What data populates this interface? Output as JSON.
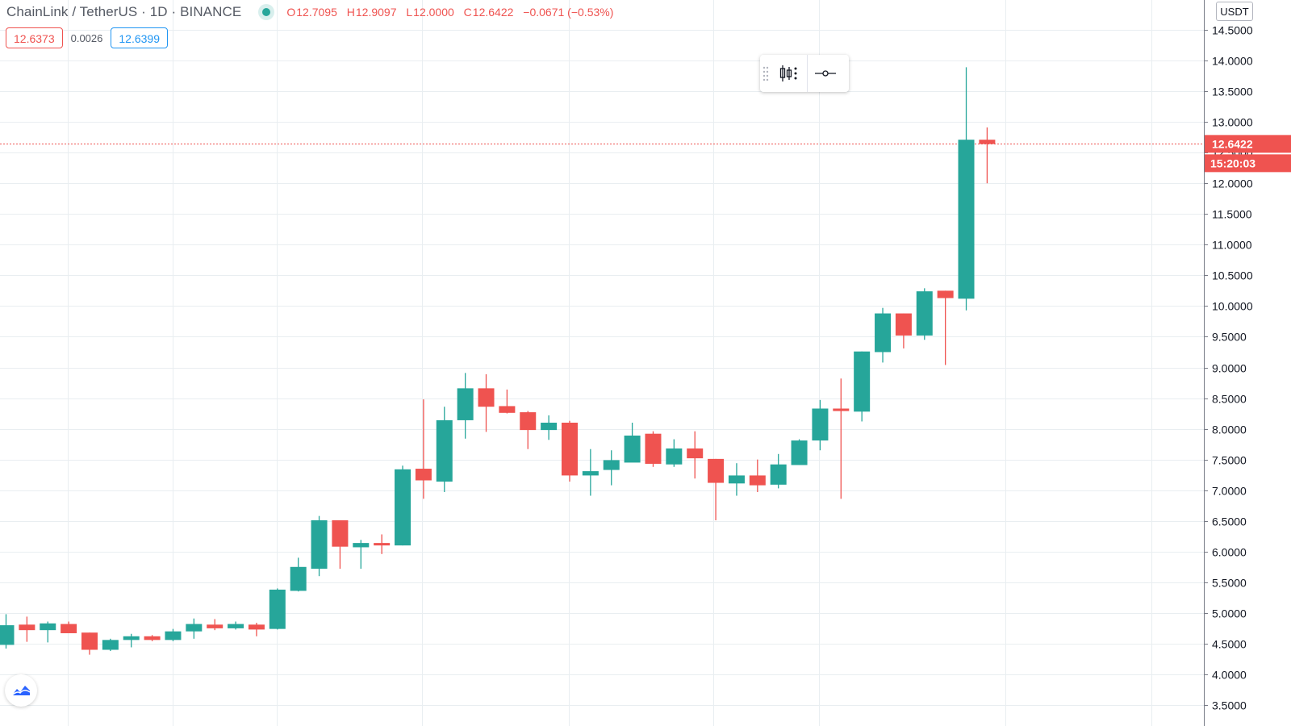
{
  "header": {
    "symbol": "ChainLink / TetherUS · 1D · BINANCE",
    "status_color": "#26a69a",
    "ohlc": {
      "o_label": "O",
      "o_value": "12.7095",
      "h_label": "H",
      "h_value": "12.9097",
      "l_label": "L",
      "l_value": "12.0000",
      "c_label": "C",
      "c_value": "12.6422",
      "change": "−0.0671 (−0.53%)"
    }
  },
  "quote": {
    "sell": "12.6373",
    "spread": "0.0026",
    "buy": "12.6399"
  },
  "toolbar": {
    "grip_icon": "drag-grip-icon",
    "chart_type_icon": "candles-settings-icon",
    "line_icon": "line-tool-icon"
  },
  "price_axis": {
    "unit": "USDT",
    "last_price_label": "12.6422",
    "countdown_label": "15:20:03"
  },
  "logo": {
    "icon": "tradingview-logo-icon"
  },
  "colors": {
    "up": "#26a69a",
    "down": "#ef5350",
    "grid": "#e9eef1",
    "axis_text": "#131722"
  },
  "chart_data": {
    "type": "candlestick",
    "title": "ChainLink / TetherUS · 1D · BINANCE",
    "ylim": [
      3.5,
      14.5
    ],
    "y_ticks": [
      "3.5000",
      "4.0000",
      "4.5000",
      "5.0000",
      "5.5000",
      "6.0000",
      "6.5000",
      "7.0000",
      "7.5000",
      "8.0000",
      "8.5000",
      "9.0000",
      "9.5000",
      "10.0000",
      "10.5000",
      "11.0000",
      "11.5000",
      "12.0000",
      "12.5000",
      "13.0000",
      "13.5000",
      "14.0000",
      "14.5000"
    ],
    "last_price": 12.6422,
    "grid": true,
    "candles": [
      {
        "o": 4.48,
        "h": 4.98,
        "l": 4.42,
        "c": 4.8
      },
      {
        "o": 4.81,
        "h": 4.94,
        "l": 4.53,
        "c": 4.72
      },
      {
        "o": 4.72,
        "h": 4.86,
        "l": 4.52,
        "c": 4.83
      },
      {
        "o": 4.82,
        "h": 4.86,
        "l": 4.68,
        "c": 4.67
      },
      {
        "o": 4.68,
        "h": 4.68,
        "l": 4.32,
        "c": 4.4
      },
      {
        "o": 4.4,
        "h": 4.58,
        "l": 4.38,
        "c": 4.56
      },
      {
        "o": 4.56,
        "h": 4.66,
        "l": 4.44,
        "c": 4.62
      },
      {
        "o": 4.62,
        "h": 4.64,
        "l": 4.54,
        "c": 4.56
      },
      {
        "o": 4.56,
        "h": 4.74,
        "l": 4.54,
        "c": 4.7
      },
      {
        "o": 4.7,
        "h": 4.91,
        "l": 4.58,
        "c": 4.82
      },
      {
        "o": 4.81,
        "h": 4.9,
        "l": 4.72,
        "c": 4.75
      },
      {
        "o": 4.75,
        "h": 4.86,
        "l": 4.73,
        "c": 4.82
      },
      {
        "o": 4.81,
        "h": 4.84,
        "l": 4.62,
        "c": 4.73
      },
      {
        "o": 4.74,
        "h": 5.4,
        "l": 4.73,
        "c": 5.38
      },
      {
        "o": 5.36,
        "h": 5.9,
        "l": 5.35,
        "c": 5.75
      },
      {
        "o": 5.72,
        "h": 6.58,
        "l": 5.6,
        "c": 6.51
      },
      {
        "o": 6.51,
        "h": 6.51,
        "l": 5.72,
        "c": 6.08
      },
      {
        "o": 6.07,
        "h": 6.19,
        "l": 5.72,
        "c": 6.14
      },
      {
        "o": 6.14,
        "h": 6.28,
        "l": 5.96,
        "c": 6.1
      },
      {
        "o": 6.1,
        "h": 7.4,
        "l": 6.1,
        "c": 7.34
      },
      {
        "o": 7.35,
        "h": 8.48,
        "l": 6.86,
        "c": 7.16
      },
      {
        "o": 7.14,
        "h": 8.36,
        "l": 6.97,
        "c": 8.14
      },
      {
        "o": 8.14,
        "h": 8.91,
        "l": 7.84,
        "c": 8.66
      },
      {
        "o": 8.66,
        "h": 8.89,
        "l": 7.95,
        "c": 8.36
      },
      {
        "o": 8.37,
        "h": 8.64,
        "l": 8.25,
        "c": 8.26
      },
      {
        "o": 8.27,
        "h": 8.29,
        "l": 7.67,
        "c": 7.98
      },
      {
        "o": 7.98,
        "h": 8.22,
        "l": 7.82,
        "c": 8.1
      },
      {
        "o": 8.1,
        "h": 8.13,
        "l": 7.14,
        "c": 7.24
      },
      {
        "o": 7.24,
        "h": 7.67,
        "l": 6.91,
        "c": 7.31
      },
      {
        "o": 7.33,
        "h": 7.65,
        "l": 7.08,
        "c": 7.49
      },
      {
        "o": 7.45,
        "h": 8.1,
        "l": 7.46,
        "c": 7.89
      },
      {
        "o": 7.92,
        "h": 7.96,
        "l": 7.38,
        "c": 7.43
      },
      {
        "o": 7.42,
        "h": 7.83,
        "l": 7.38,
        "c": 7.68
      },
      {
        "o": 7.68,
        "h": 7.96,
        "l": 7.19,
        "c": 7.52
      },
      {
        "o": 7.51,
        "h": 7.51,
        "l": 6.51,
        "c": 7.12
      },
      {
        "o": 7.11,
        "h": 7.44,
        "l": 6.91,
        "c": 7.24
      },
      {
        "o": 7.24,
        "h": 7.5,
        "l": 6.97,
        "c": 7.08
      },
      {
        "o": 7.09,
        "h": 7.59,
        "l": 7.03,
        "c": 7.42
      },
      {
        "o": 7.41,
        "h": 7.83,
        "l": 7.41,
        "c": 7.81
      },
      {
        "o": 7.81,
        "h": 8.47,
        "l": 7.65,
        "c": 8.33
      },
      {
        "o": 8.33,
        "h": 8.82,
        "l": 6.86,
        "c": 8.29
      },
      {
        "o": 8.28,
        "h": 9.26,
        "l": 8.12,
        "c": 9.26
      },
      {
        "o": 9.25,
        "h": 9.97,
        "l": 9.08,
        "c": 9.88
      },
      {
        "o": 9.88,
        "h": 9.88,
        "l": 9.31,
        "c": 9.52
      },
      {
        "o": 9.52,
        "h": 10.29,
        "l": 9.45,
        "c": 10.24
      },
      {
        "o": 10.25,
        "h": 10.25,
        "l": 9.04,
        "c": 10.13
      },
      {
        "o": 10.12,
        "h": 13.89,
        "l": 9.93,
        "c": 12.71
      },
      {
        "o": 12.71,
        "h": 12.91,
        "l": 12.0,
        "c": 12.64
      }
    ]
  }
}
